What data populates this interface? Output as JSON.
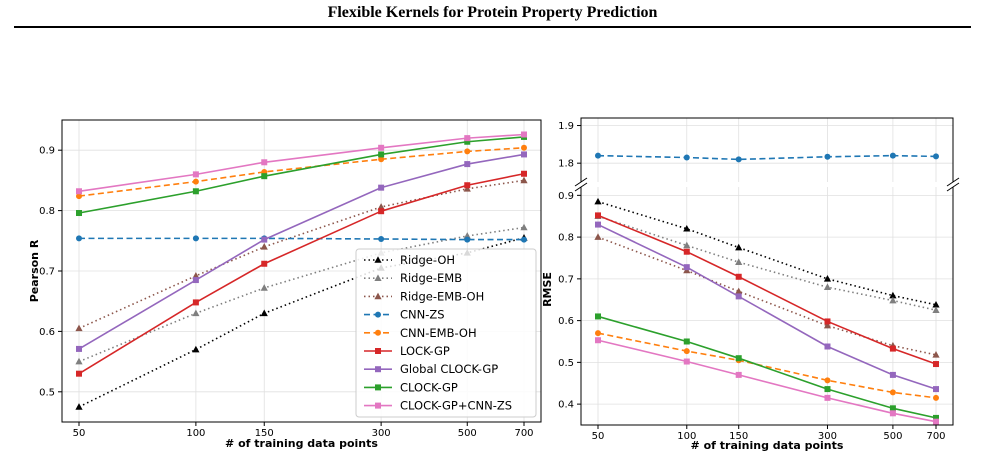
{
  "header": {
    "title": "Flexible Kernels for Protein Property Prediction"
  },
  "chart_data": [
    {
      "type": "line",
      "panel": "left",
      "categories": [
        "50",
        "100",
        "150",
        "300",
        "500",
        "700"
      ],
      "xlabel": "# of training data points",
      "ylabel": "Pearson R",
      "ylim": [
        0.45,
        0.95
      ],
      "yticks": [
        0.5,
        0.6,
        0.7,
        0.8,
        0.9
      ],
      "ytick_labels": [
        "0.5",
        "0.6",
        "0.7",
        "0.8",
        "0.9"
      ],
      "grid": true,
      "legend": "lower-right",
      "series": [
        {
          "name": "Ridge-OH",
          "color": "#000000",
          "dash": "dot",
          "marker": "triangle",
          "values": [
            0.475,
            0.57,
            0.63,
            0.705,
            0.73,
            0.755
          ]
        },
        {
          "name": "Ridge-EMB",
          "color": "#7f7f7f",
          "dash": "dot",
          "marker": "triangle",
          "values": [
            0.55,
            0.63,
            0.672,
            0.73,
            0.758,
            0.772
          ]
        },
        {
          "name": "Ridge-EMB-OH",
          "color": "#8c564b",
          "dash": "dot",
          "marker": "triangle",
          "values": [
            0.605,
            0.692,
            0.74,
            0.806,
            0.836,
            0.85
          ]
        },
        {
          "name": "CNN-ZS",
          "color": "#1f77b4",
          "dash": "dash",
          "marker": "circle",
          "values": [
            0.754,
            0.754,
            0.754,
            0.753,
            0.752,
            0.752
          ]
        },
        {
          "name": "CNN-EMB-OH",
          "color": "#ff7f0e",
          "dash": "dash",
          "marker": "circle",
          "values": [
            0.824,
            0.848,
            0.864,
            0.885,
            0.898,
            0.904
          ]
        },
        {
          "name": "LOCK-GP",
          "color": "#d62728",
          "dash": "solid",
          "marker": "square",
          "values": [
            0.53,
            0.648,
            0.712,
            0.799,
            0.842,
            0.861
          ]
        },
        {
          "name": "Global CLOCK-GP",
          "color": "#9467bd",
          "dash": "solid",
          "marker": "square",
          "values": [
            0.571,
            0.685,
            0.752,
            0.838,
            0.877,
            0.893
          ]
        },
        {
          "name": "CLOCK-GP",
          "color": "#2ca02c",
          "dash": "solid",
          "marker": "square",
          "values": [
            0.796,
            0.832,
            0.857,
            0.893,
            0.914,
            0.922
          ]
        },
        {
          "name": "CLOCK-GP+CNN-ZS",
          "color": "#e377c2",
          "dash": "solid",
          "marker": "square",
          "values": [
            0.832,
            0.86,
            0.88,
            0.904,
            0.92,
            0.926
          ]
        }
      ]
    },
    {
      "type": "line",
      "panel": "right",
      "categories": [
        "50",
        "100",
        "150",
        "300",
        "500",
        "700"
      ],
      "xlabel": "# of training data points",
      "ylabel": "RMSE",
      "broken_axis": true,
      "top_ylim": [
        1.75,
        1.92
      ],
      "top_yticks": [
        1.8,
        1.9
      ],
      "top_ytick_labels": [
        "1.8",
        "1.9"
      ],
      "bottom_ylim": [
        0.35,
        0.92
      ],
      "bottom_yticks": [
        0.4,
        0.5,
        0.6,
        0.7,
        0.8,
        0.9
      ],
      "bottom_ytick_labels": [
        "0.4",
        "0.5",
        "0.6",
        "0.7",
        "0.8",
        "0.9"
      ],
      "grid": true,
      "series": [
        {
          "name": "Ridge-OH",
          "color": "#000000",
          "dash": "dot",
          "marker": "triangle",
          "values": [
            0.885,
            0.82,
            0.775,
            0.7,
            0.66,
            0.638
          ]
        },
        {
          "name": "Ridge-EMB",
          "color": "#7f7f7f",
          "dash": "dot",
          "marker": "triangle",
          "values": [
            0.85,
            0.78,
            0.74,
            0.68,
            0.648,
            0.625
          ]
        },
        {
          "name": "Ridge-EMB-OH",
          "color": "#8c564b",
          "dash": "dot",
          "marker": "triangle",
          "values": [
            0.8,
            0.72,
            0.67,
            0.588,
            0.54,
            0.518
          ]
        },
        {
          "name": "CNN-ZS",
          "color": "#1f77b4",
          "dash": "dash",
          "marker": "circle",
          "values": [
            1.82,
            1.815,
            1.81,
            1.817,
            1.82,
            1.818
          ]
        },
        {
          "name": "CNN-EMB-OH",
          "color": "#ff7f0e",
          "dash": "dash",
          "marker": "circle",
          "values": [
            0.57,
            0.527,
            0.505,
            0.457,
            0.428,
            0.415
          ]
        },
        {
          "name": "LOCK-GP",
          "color": "#d62728",
          "dash": "solid",
          "marker": "square",
          "values": [
            0.852,
            0.765,
            0.705,
            0.598,
            0.533,
            0.496
          ]
        },
        {
          "name": "Global CLOCK-GP",
          "color": "#9467bd",
          "dash": "solid",
          "marker": "square",
          "values": [
            0.83,
            0.728,
            0.658,
            0.538,
            0.47,
            0.436
          ]
        },
        {
          "name": "CLOCK-GP",
          "color": "#2ca02c",
          "dash": "solid",
          "marker": "square",
          "values": [
            0.61,
            0.55,
            0.51,
            0.436,
            0.39,
            0.367
          ]
        },
        {
          "name": "CLOCK-GP+CNN-ZS",
          "color": "#e377c2",
          "dash": "solid",
          "marker": "square",
          "values": [
            0.553,
            0.502,
            0.47,
            0.415,
            0.378,
            0.358
          ]
        }
      ]
    }
  ]
}
